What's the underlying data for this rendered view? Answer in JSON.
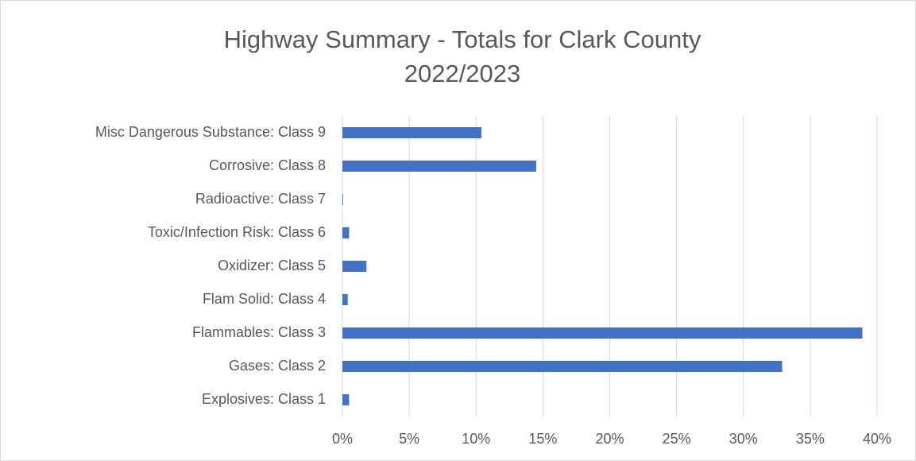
{
  "chart_data": {
    "type": "bar",
    "orientation": "horizontal",
    "title": [
      "Highway Summary - Totals for Clark County",
      "2022/2023"
    ],
    "categories": [
      "Explosives: Class 1",
      "Gases: Class 2",
      "Flammables: Class 3",
      "Flam Solid: Class 4",
      "Oxidizer: Class 5",
      "Toxic/Infection Risk: Class 6",
      "Radioactive: Class 7",
      "Corrosive: Class 8",
      "Misc Dangerous Substance: Class 9"
    ],
    "values": [
      0.5,
      32.9,
      38.9,
      0.4,
      1.8,
      0.5,
      0.05,
      14.5,
      10.4
    ],
    "color": "#4472c4",
    "xlim": [
      0,
      40
    ],
    "xticks": [
      {
        "value": 0,
        "label": "0%"
      },
      {
        "value": 5,
        "label": "5%"
      },
      {
        "value": 10,
        "label": "10%"
      },
      {
        "value": 15,
        "label": "15%"
      },
      {
        "value": 20,
        "label": "20%"
      },
      {
        "value": 25,
        "label": "25%"
      },
      {
        "value": 30,
        "label": "30%"
      },
      {
        "value": 35,
        "label": "35%"
      },
      {
        "value": 40,
        "label": "40%"
      }
    ],
    "grid": true
  }
}
